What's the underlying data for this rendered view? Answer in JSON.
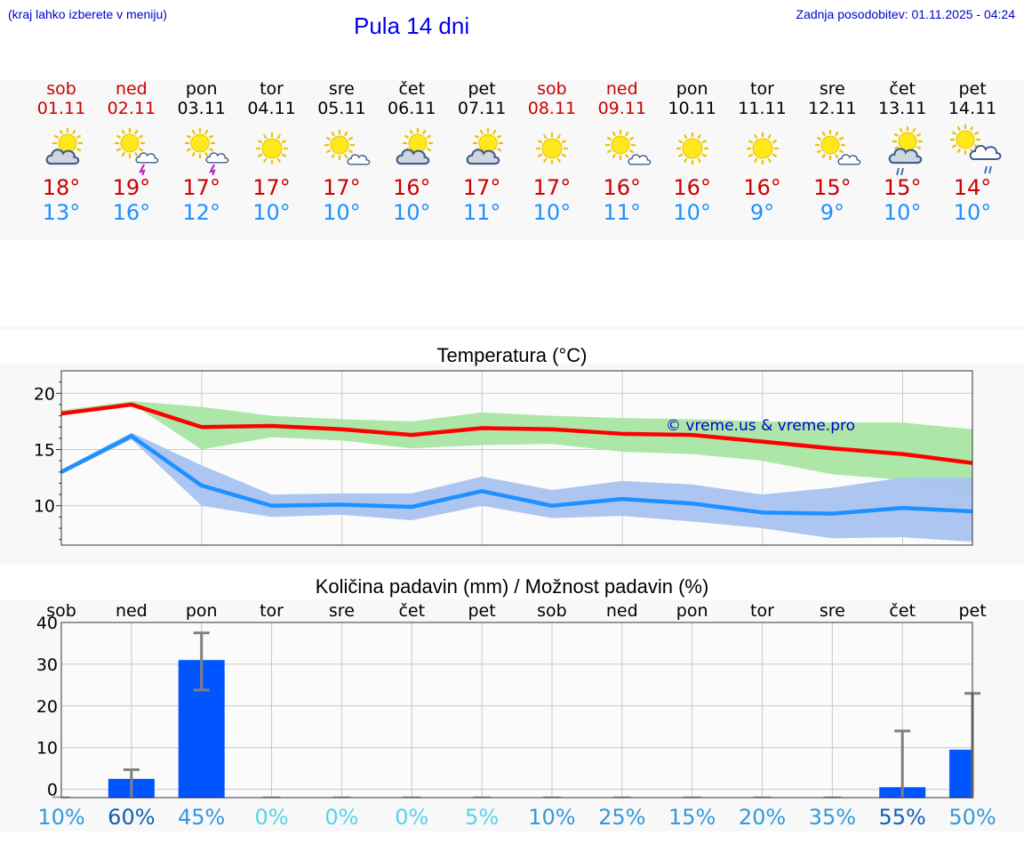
{
  "header": {
    "location_hint": "(kraj lahko izberete v meniju)",
    "title": "Pula 14 dni",
    "updated": "Zadnja posodobitev: 01.11.2025 - 04:24"
  },
  "days": [
    {
      "name": "sob",
      "date": "01.11",
      "weekend": true,
      "icon": "sun-cloud-icon",
      "max": "18°",
      "min": "13°"
    },
    {
      "name": "ned",
      "date": "02.11",
      "weekend": true,
      "icon": "sun-cloud-storm-icon",
      "max": "19°",
      "min": "16°"
    },
    {
      "name": "pon",
      "date": "03.11",
      "weekend": false,
      "icon": "sun-cloud-storm-icon",
      "max": "17°",
      "min": "12°"
    },
    {
      "name": "tor",
      "date": "04.11",
      "weekend": false,
      "icon": "sun-icon",
      "max": "17°",
      "min": "10°"
    },
    {
      "name": "sre",
      "date": "05.11",
      "weekend": false,
      "icon": "sun-small-cloud-icon",
      "max": "17°",
      "min": "10°"
    },
    {
      "name": "čet",
      "date": "06.11",
      "weekend": false,
      "icon": "sun-cloud-icon",
      "max": "16°",
      "min": "10°"
    },
    {
      "name": "pet",
      "date": "07.11",
      "weekend": false,
      "icon": "sun-cloud-icon",
      "max": "17°",
      "min": "11°"
    },
    {
      "name": "sob",
      "date": "08.11",
      "weekend": true,
      "icon": "sun-icon",
      "max": "17°",
      "min": "10°"
    },
    {
      "name": "ned",
      "date": "09.11",
      "weekend": true,
      "icon": "sun-small-cloud-icon",
      "max": "16°",
      "min": "11°"
    },
    {
      "name": "pon",
      "date": "10.11",
      "weekend": false,
      "icon": "sun-icon",
      "max": "16°",
      "min": "10°"
    },
    {
      "name": "tor",
      "date": "11.11",
      "weekend": false,
      "icon": "sun-icon",
      "max": "16°",
      "min": "9°"
    },
    {
      "name": "sre",
      "date": "12.11",
      "weekend": false,
      "icon": "sun-small-cloud-icon",
      "max": "15°",
      "min": "9°"
    },
    {
      "name": "čet",
      "date": "13.11",
      "weekend": false,
      "icon": "sun-cloud-rain-icon",
      "max": "15°",
      "min": "10°"
    },
    {
      "name": "pet",
      "date": "14.11",
      "weekend": false,
      "icon": "sun-big-cloud-rain-icon",
      "max": "14°",
      "min": "10°"
    }
  ],
  "colors": {
    "max_line": "#ff0000",
    "max_band": "#a8e6a3",
    "min_line": "#1e90ff",
    "min_band": "#a9c3f0",
    "bar": "#0055ff",
    "error_bar": "#808080",
    "watermark": "#0000cc"
  },
  "chart_data": [
    {
      "type": "line",
      "title": "Temperatura (°C)",
      "watermark": "© vreme.us & vreme.pro",
      "x": [
        0,
        1,
        2,
        3,
        4,
        5,
        6,
        7,
        8,
        9,
        10,
        11,
        12,
        13
      ],
      "ylim": [
        6.5,
        22
      ],
      "yticks": [
        10,
        15,
        20
      ],
      "series": [
        {
          "name": "max",
          "values": [
            18.2,
            19.0,
            17.0,
            17.1,
            16.8,
            16.3,
            16.9,
            16.8,
            16.4,
            16.3,
            15.7,
            15.1,
            14.6,
            13.8
          ],
          "band_low": [
            18.0,
            19.1,
            15.0,
            16.1,
            15.8,
            15.1,
            15.4,
            15.5,
            14.8,
            14.6,
            14.0,
            12.8,
            12.3,
            10.9
          ],
          "band_high": [
            18.5,
            19.3,
            18.8,
            18.0,
            17.7,
            17.5,
            18.3,
            18.0,
            17.8,
            17.7,
            17.5,
            17.4,
            17.4,
            16.8
          ]
        },
        {
          "name": "min",
          "values": [
            13.0,
            16.2,
            11.8,
            10.0,
            10.1,
            9.9,
            11.3,
            10.0,
            10.6,
            10.2,
            9.4,
            9.3,
            9.8,
            9.5
          ],
          "band_low": [
            12.8,
            15.9,
            10.0,
            9.0,
            9.2,
            8.7,
            10.0,
            8.9,
            9.1,
            8.6,
            8.0,
            7.1,
            7.2,
            6.8
          ],
          "band_high": [
            13.2,
            16.5,
            13.6,
            11.0,
            11.1,
            11.1,
            12.6,
            11.4,
            12.2,
            11.9,
            11.0,
            11.6,
            12.5,
            12.5
          ]
        }
      ]
    },
    {
      "type": "bar",
      "title": "Količina padavin (mm) / Možnost padavin (%)",
      "categories": [
        "sob",
        "ned",
        "pon",
        "tor",
        "sre",
        "čet",
        "pet",
        "sob",
        "ned",
        "pon",
        "tor",
        "sre",
        "čet",
        "pet"
      ],
      "ylim": [
        -2,
        40
      ],
      "yticks": [
        0,
        10,
        20,
        30,
        40
      ],
      "values": [
        0,
        2.5,
        31,
        0,
        0,
        0,
        0,
        0,
        0,
        0,
        0,
        0,
        0.5,
        9.5
      ],
      "error_high": [
        0,
        4.7,
        37.5,
        0,
        0,
        0,
        0,
        0,
        0,
        0,
        0,
        0,
        14,
        23
      ],
      "error_low": [
        0,
        0,
        23.8,
        0,
        0,
        0,
        0,
        0,
        0,
        0,
        0,
        0,
        0,
        0
      ],
      "probability": [
        "10%",
        "60%",
        "45%",
        "0%",
        "0%",
        "0%",
        "5%",
        "10%",
        "25%",
        "15%",
        "20%",
        "35%",
        "55%",
        "50%"
      ],
      "probability_colors": [
        "#3399dd",
        "#1160b0",
        "#3399dd",
        "#55d4e8",
        "#55d4e8",
        "#55d4e8",
        "#55d4e8",
        "#3399dd",
        "#3399dd",
        "#3399dd",
        "#3399dd",
        "#3399dd",
        "#1160b0",
        "#3399dd"
      ]
    }
  ]
}
